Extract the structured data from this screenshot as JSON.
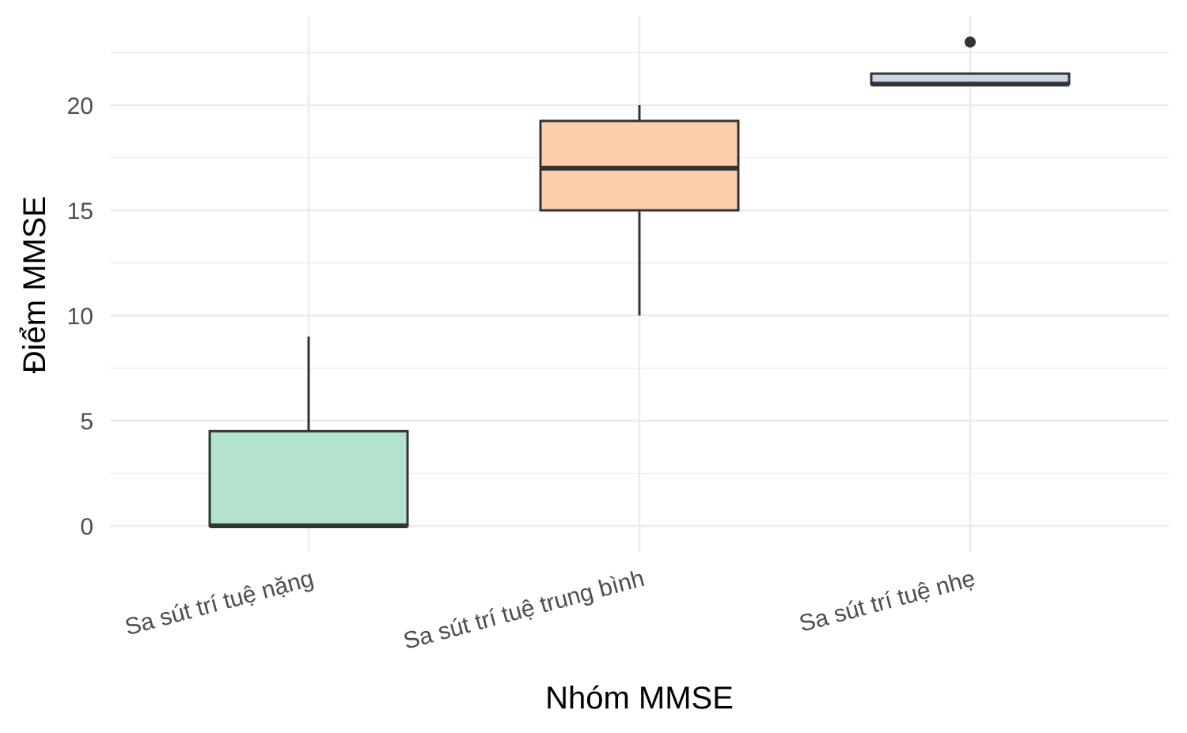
{
  "chart_data": {
    "type": "boxplot",
    "xlabel": "Nhóm MMSE",
    "ylabel": "Điểm MMSE",
    "ylim": [
      -1.2,
      23.9
    ],
    "y_ticks": [
      0,
      5,
      10,
      15,
      20
    ],
    "grid": true,
    "legend": "none",
    "categories": [
      "Sa sút trí tuệ nặng",
      "Sa sút trí tuệ trung bình",
      "Sa sút trí tuệ nhẹ"
    ],
    "boxes": [
      {
        "category": "Sa sút trí tuệ nặng",
        "min": 0,
        "q1": 0,
        "median": 0,
        "q3": 4.5,
        "max": 9,
        "outliers": [],
        "fill": "#b3e2cd"
      },
      {
        "category": "Sa sút trí tuệ trung bình",
        "min": 10,
        "q1": 15,
        "median": 17,
        "q3": 19.25,
        "max": 20,
        "outliers": [],
        "fill": "#fdcdac"
      },
      {
        "category": "Sa sút trí tuệ nhẹ",
        "min": 21,
        "q1": 21,
        "median": 21,
        "q3": 21.5,
        "max": 21.5,
        "outliers": [
          23
        ],
        "fill": "#cbd5e8"
      }
    ]
  }
}
